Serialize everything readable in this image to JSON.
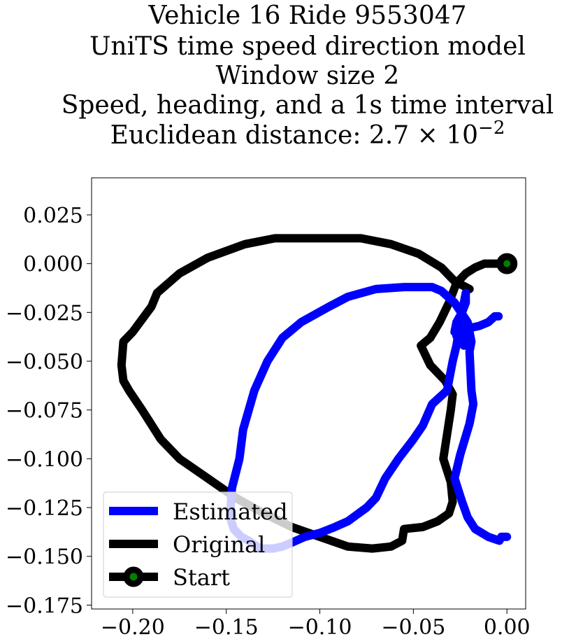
{
  "chart_data": {
    "type": "line",
    "title": [
      "Vehicle 16 Ride 9553047",
      "UniTS time speed direction model",
      "Window size 2",
      "Speed, heading, and a 1s time interval",
      "Euclidean distance: 2.7 × 10"
    ],
    "title_exponent": "−2",
    "xlabel": "",
    "ylabel": "",
    "xlim": [
      -0.222,
      0.01
    ],
    "ylim": [
      -0.177,
      0.044
    ],
    "x_ticks": [
      -0.2,
      -0.15,
      -0.1,
      -0.05,
      0.0
    ],
    "x_tick_labels": [
      "−0.20",
      "−0.15",
      "−0.10",
      "−0.05",
      "0.00"
    ],
    "y_ticks": [
      0.025,
      0.0,
      -0.025,
      -0.05,
      -0.075,
      -0.1,
      -0.125,
      -0.15,
      -0.175
    ],
    "y_tick_labels": [
      "0.025",
      "0.000",
      "−0.025",
      "−0.050",
      "−0.075",
      "−0.100",
      "−0.125",
      "−0.150",
      "−0.175"
    ],
    "grid": false,
    "legend_position": "lower-left",
    "series": [
      {
        "name": "Original",
        "color": "#000000",
        "x": [
          -0.02,
          -0.028,
          -0.035,
          -0.047,
          -0.062,
          -0.078,
          -0.094,
          -0.11,
          -0.124,
          -0.14,
          -0.16,
          -0.175,
          -0.187,
          -0.19,
          -0.2,
          -0.205,
          -0.206,
          -0.205,
          -0.202,
          -0.195,
          -0.185,
          -0.175,
          -0.16,
          -0.145,
          -0.13,
          -0.115,
          -0.1,
          -0.085,
          -0.072,
          -0.062,
          -0.056,
          -0.055,
          -0.045,
          -0.037,
          -0.031,
          -0.029,
          -0.03,
          -0.034,
          -0.03,
          -0.029,
          -0.033,
          -0.041,
          -0.046,
          -0.041,
          -0.036,
          -0.031,
          -0.027,
          -0.022,
          -0.017,
          -0.012,
          -0.006,
          0.0
        ],
        "y": [
          -0.013,
          -0.009,
          -0.002,
          0.005,
          0.01,
          0.013,
          0.013,
          0.013,
          0.013,
          0.01,
          0.003,
          -0.005,
          -0.015,
          -0.022,
          -0.035,
          -0.04,
          -0.052,
          -0.06,
          -0.065,
          -0.075,
          -0.09,
          -0.1,
          -0.11,
          -0.12,
          -0.128,
          -0.135,
          -0.14,
          -0.145,
          -0.146,
          -0.145,
          -0.142,
          -0.136,
          -0.135,
          -0.132,
          -0.128,
          -0.122,
          -0.112,
          -0.1,
          -0.075,
          -0.067,
          -0.06,
          -0.052,
          -0.042,
          -0.038,
          -0.03,
          -0.02,
          -0.01,
          -0.005,
          -0.002,
          0.0,
          0.0,
          0.0
        ]
      },
      {
        "name": "Estimated",
        "color": "#0000ff",
        "x": [
          -0.0045,
          -0.0065,
          -0.01,
          -0.015,
          -0.02,
          -0.025,
          -0.027,
          -0.023,
          -0.02,
          -0.025,
          -0.028,
          -0.027,
          -0.024,
          -0.022,
          -0.022,
          -0.025,
          -0.027,
          -0.029,
          -0.032,
          -0.04,
          -0.045,
          -0.05,
          -0.058,
          -0.065,
          -0.07,
          -0.075,
          -0.085,
          -0.092,
          -0.1,
          -0.108,
          -0.115,
          -0.12,
          -0.125,
          -0.132,
          -0.138,
          -0.142,
          -0.146,
          -0.148,
          -0.147,
          -0.143,
          -0.141,
          -0.135,
          -0.128,
          -0.12,
          -0.11,
          -0.095,
          -0.085,
          -0.07,
          -0.055,
          -0.045,
          -0.04,
          -0.035,
          -0.028,
          -0.021,
          -0.019,
          -0.02,
          -0.019,
          -0.018,
          -0.02,
          -0.025,
          -0.028,
          -0.024,
          -0.021,
          -0.017,
          -0.01,
          -0.004,
          -0.003,
          -0.001,
          0.0
        ],
        "y": [
          -0.027,
          -0.027,
          -0.03,
          -0.032,
          -0.033,
          -0.035,
          -0.037,
          -0.042,
          -0.038,
          -0.037,
          -0.035,
          -0.03,
          -0.025,
          -0.02,
          -0.015,
          -0.03,
          -0.042,
          -0.05,
          -0.065,
          -0.072,
          -0.083,
          -0.09,
          -0.1,
          -0.11,
          -0.12,
          -0.125,
          -0.132,
          -0.135,
          -0.138,
          -0.14,
          -0.143,
          -0.145,
          -0.146,
          -0.146,
          -0.142,
          -0.14,
          -0.136,
          -0.13,
          -0.115,
          -0.1,
          -0.085,
          -0.065,
          -0.05,
          -0.038,
          -0.03,
          -0.022,
          -0.017,
          -0.013,
          -0.012,
          -0.012,
          -0.012,
          -0.014,
          -0.02,
          -0.03,
          -0.04,
          -0.045,
          -0.065,
          -0.072,
          -0.082,
          -0.098,
          -0.11,
          -0.122,
          -0.13,
          -0.136,
          -0.14,
          -0.142,
          -0.14,
          -0.14,
          -0.14
        ]
      },
      {
        "name": "Start",
        "color": "#008000",
        "marker_edge_color": "#000000",
        "x": [
          0.0
        ],
        "y": [
          0.0
        ]
      }
    ],
    "legend_entries": [
      "Estimated",
      "Original",
      "Start"
    ]
  }
}
